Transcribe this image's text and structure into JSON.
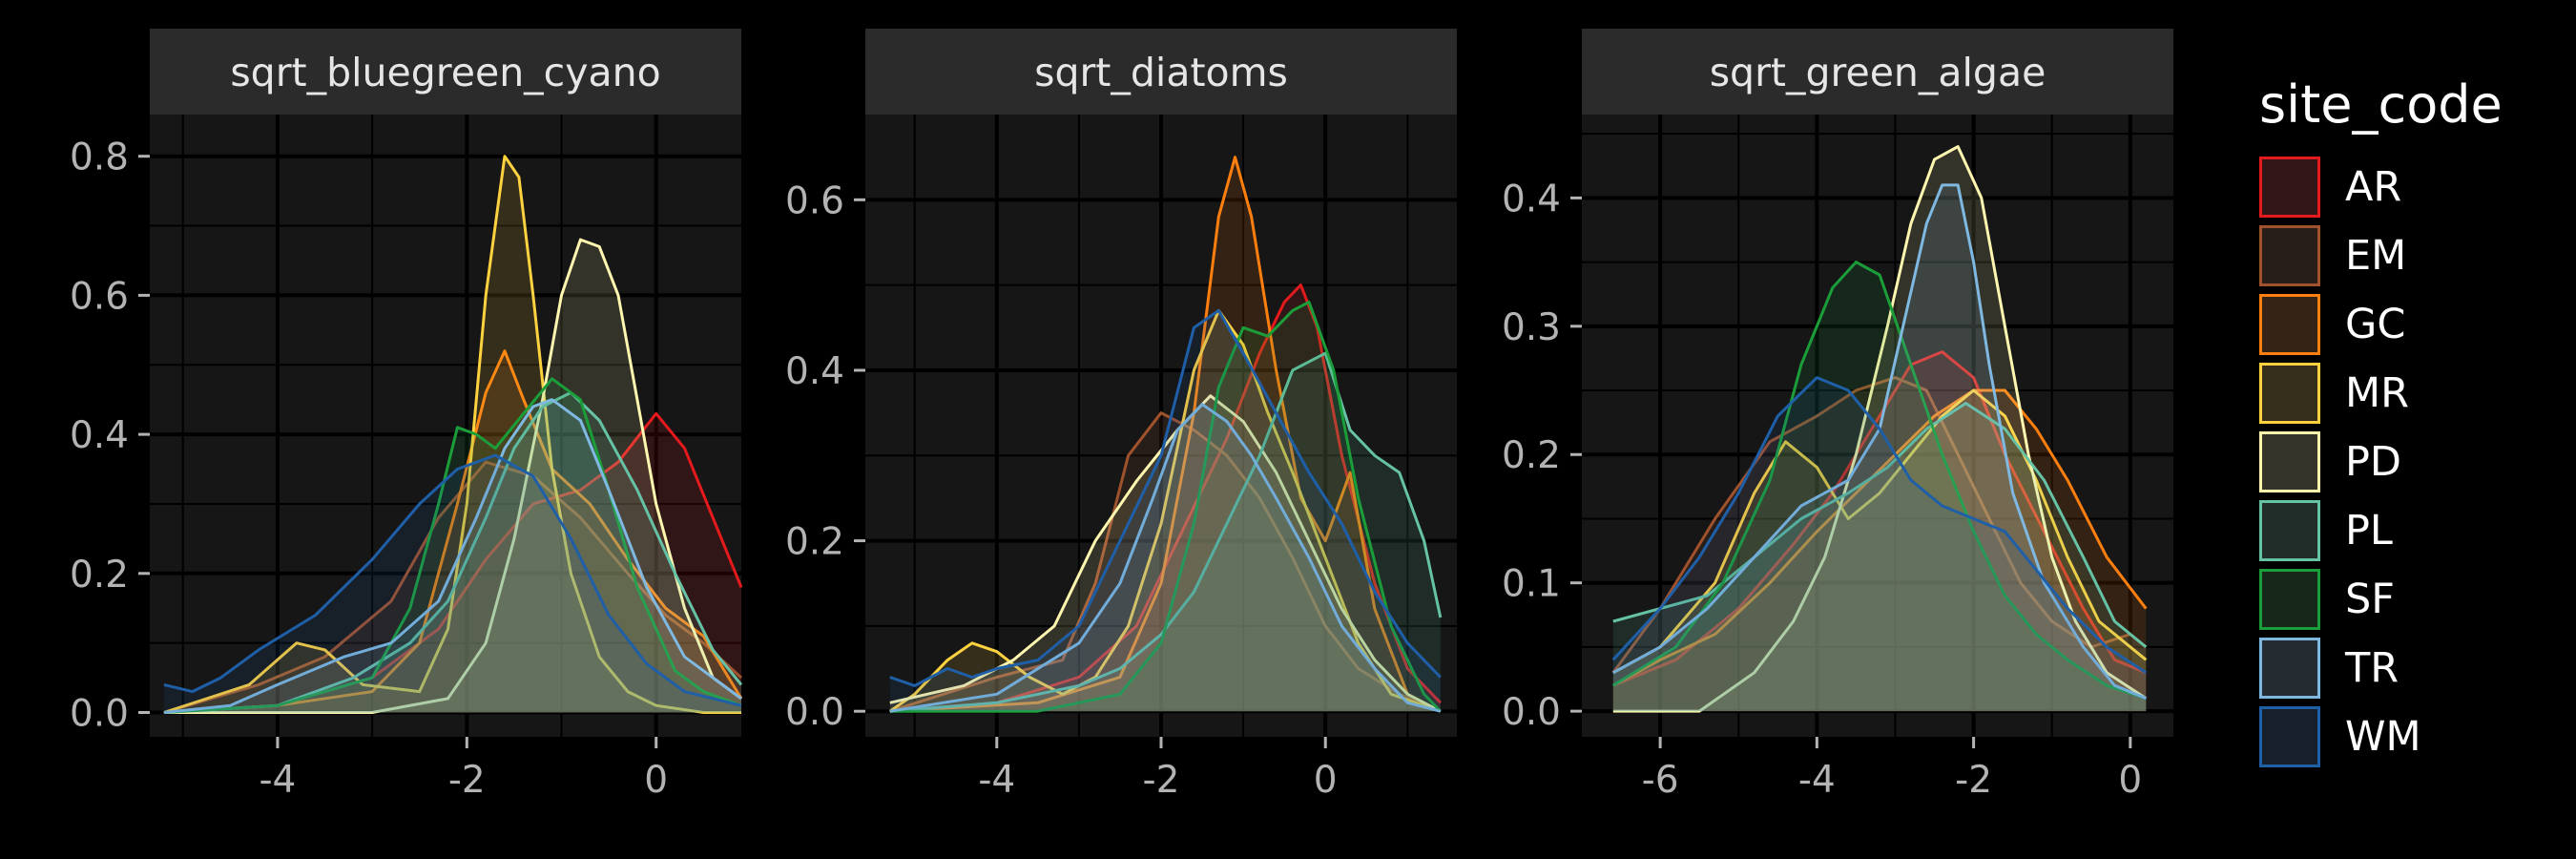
{
  "legend": {
    "title": "site_code",
    "items": [
      {
        "label": "AR",
        "color": "#e41a1c"
      },
      {
        "label": "EM",
        "color": "#a0522d"
      },
      {
        "label": "GC",
        "color": "#ff7f0e"
      },
      {
        "label": "MR",
        "color": "#ffd23f"
      },
      {
        "label": "PD",
        "color": "#fff7b0"
      },
      {
        "label": "PL",
        "color": "#66c2a5"
      },
      {
        "label": "SF",
        "color": "#1b9e3a"
      },
      {
        "label": "TR",
        "color": "#7fb8e0"
      },
      {
        "label": "WM",
        "color": "#1f5fa8"
      }
    ]
  },
  "chart_data": [
    {
      "type": "area",
      "title": "sqrt_bluegreen_cyano",
      "xlabel": "",
      "ylabel": "",
      "xlim": [
        -5.35,
        0.9
      ],
      "ylim": [
        -0.035,
        0.86
      ],
      "xticks": [
        -4,
        -2,
        0
      ],
      "xticklabels": [
        "-4",
        "-2",
        "0"
      ],
      "yticks": [
        0.0,
        0.2,
        0.4,
        0.6,
        0.8
      ],
      "yticklabels": [
        "0.0",
        "0.2",
        "0.4",
        "0.6",
        "0.8"
      ],
      "grid": true,
      "series": [
        {
          "name": "AR",
          "x": [
            -5.2,
            -4,
            -3,
            -2.3,
            -1.8,
            -1.3,
            -0.8,
            -0.4,
            0,
            0.3,
            0.6,
            0.9
          ],
          "y": [
            0,
            0.01,
            0.05,
            0.12,
            0.22,
            0.3,
            0.32,
            0.36,
            0.43,
            0.38,
            0.28,
            0.18
          ]
        },
        {
          "name": "EM",
          "x": [
            -5.2,
            -4.2,
            -3.5,
            -2.8,
            -2.3,
            -1.8,
            -1.3,
            -0.8,
            -0.3,
            0.1,
            0.5,
            0.9
          ],
          "y": [
            0,
            0.04,
            0.08,
            0.16,
            0.28,
            0.36,
            0.34,
            0.28,
            0.2,
            0.14,
            0.1,
            0.05
          ]
        },
        {
          "name": "GC",
          "x": [
            -5.2,
            -4,
            -3,
            -2.5,
            -2.1,
            -1.8,
            -1.6,
            -1.4,
            -1.1,
            -0.7,
            -0.3,
            0.1,
            0.5,
            0.9
          ],
          "y": [
            0,
            0.01,
            0.03,
            0.1,
            0.3,
            0.46,
            0.52,
            0.45,
            0.35,
            0.3,
            0.22,
            0.15,
            0.11,
            0.02
          ]
        },
        {
          "name": "MR",
          "x": [
            -5.2,
            -4.3,
            -3.8,
            -3.5,
            -3.1,
            -2.5,
            -2.2,
            -2,
            -1.8,
            -1.6,
            -1.45,
            -1.3,
            -1.1,
            -0.9,
            -0.6,
            -0.3,
            0,
            0.5,
            0.9
          ],
          "y": [
            0,
            0.04,
            0.1,
            0.09,
            0.04,
            0.03,
            0.12,
            0.3,
            0.6,
            0.8,
            0.77,
            0.6,
            0.35,
            0.2,
            0.08,
            0.03,
            0.01,
            0,
            0
          ]
        },
        {
          "name": "PD",
          "x": [
            -5.2,
            -3,
            -2.2,
            -1.8,
            -1.5,
            -1.2,
            -1,
            -0.8,
            -0.6,
            -0.4,
            -0.2,
            0,
            0.3,
            0.6,
            0.9
          ],
          "y": [
            0,
            0,
            0.02,
            0.1,
            0.25,
            0.45,
            0.6,
            0.68,
            0.67,
            0.6,
            0.45,
            0.3,
            0.15,
            0.05,
            0.02
          ]
        },
        {
          "name": "PL",
          "x": [
            -5.2,
            -4,
            -3.2,
            -2.6,
            -2.2,
            -1.8,
            -1.5,
            -1.2,
            -0.9,
            -0.6,
            -0.2,
            0.2,
            0.6,
            0.9
          ],
          "y": [
            0,
            0.01,
            0.05,
            0.1,
            0.16,
            0.28,
            0.38,
            0.44,
            0.46,
            0.42,
            0.32,
            0.2,
            0.09,
            0.04
          ]
        },
        {
          "name": "SF",
          "x": [
            -5.2,
            -4,
            -3,
            -2.6,
            -2.3,
            -2.1,
            -1.9,
            -1.7,
            -1.4,
            -1.1,
            -0.8,
            -0.5,
            -0.2,
            0.2,
            0.5,
            0.9
          ],
          "y": [
            0,
            0.01,
            0.05,
            0.15,
            0.3,
            0.41,
            0.4,
            0.38,
            0.43,
            0.48,
            0.45,
            0.32,
            0.18,
            0.06,
            0.03,
            0.01
          ]
        },
        {
          "name": "TR",
          "x": [
            -5.2,
            -4.5,
            -4,
            -3.3,
            -2.8,
            -2.3,
            -1.9,
            -1.6,
            -1.3,
            -1.1,
            -0.8,
            -0.5,
            -0.1,
            0.3,
            0.9
          ],
          "y": [
            0,
            0.01,
            0.04,
            0.08,
            0.1,
            0.16,
            0.28,
            0.38,
            0.44,
            0.45,
            0.42,
            0.32,
            0.18,
            0.08,
            0.02
          ]
        },
        {
          "name": "WM",
          "x": [
            -5.2,
            -4.9,
            -4.6,
            -4.2,
            -3.6,
            -3,
            -2.5,
            -2.1,
            -1.7,
            -1.3,
            -0.9,
            -0.5,
            -0.1,
            0.3,
            0.9
          ],
          "y": [
            0.04,
            0.03,
            0.05,
            0.09,
            0.14,
            0.22,
            0.3,
            0.35,
            0.37,
            0.34,
            0.25,
            0.14,
            0.07,
            0.03,
            0.01
          ]
        }
      ]
    },
    {
      "type": "area",
      "title": "sqrt_diatoms",
      "xlabel": "",
      "ylabel": "",
      "xlim": [
        -5.6,
        1.6
      ],
      "ylim": [
        -0.03,
        0.7
      ],
      "xticks": [
        -4,
        -2,
        0
      ],
      "xticklabels": [
        "-4",
        "-2",
        "0"
      ],
      "yticks": [
        0.0,
        0.2,
        0.4,
        0.6
      ],
      "yticklabels": [
        "0.0",
        "0.2",
        "0.4",
        "0.6"
      ],
      "grid": true,
      "series": [
        {
          "name": "AR",
          "x": [
            -5.3,
            -4,
            -3,
            -2.3,
            -1.8,
            -1.2,
            -0.8,
            -0.5,
            -0.3,
            -0.1,
            0.2,
            0.6,
            1,
            1.4
          ],
          "y": [
            0,
            0.01,
            0.04,
            0.1,
            0.2,
            0.32,
            0.42,
            0.48,
            0.5,
            0.45,
            0.3,
            0.15,
            0.05,
            0.01
          ]
        },
        {
          "name": "EM",
          "x": [
            -5.3,
            -4,
            -3.2,
            -2.8,
            -2.4,
            -2,
            -1.6,
            -1.2,
            -0.8,
            -0.4,
            0,
            0.4,
            0.9,
            1.4
          ],
          "y": [
            0,
            0.04,
            0.06,
            0.15,
            0.3,
            0.35,
            0.33,
            0.3,
            0.25,
            0.18,
            0.1,
            0.05,
            0.02,
            0
          ]
        },
        {
          "name": "GC",
          "x": [
            -5.3,
            -3.5,
            -2.5,
            -2,
            -1.6,
            -1.3,
            -1.1,
            -0.9,
            -0.6,
            -0.3,
            0,
            0.3,
            0.6,
            1,
            1.4
          ],
          "y": [
            0,
            0.01,
            0.04,
            0.15,
            0.35,
            0.58,
            0.65,
            0.58,
            0.4,
            0.25,
            0.2,
            0.28,
            0.12,
            0.02,
            0
          ]
        },
        {
          "name": "MR",
          "x": [
            -5.3,
            -5,
            -4.6,
            -4.3,
            -4,
            -3.6,
            -3.2,
            -2.8,
            -2.4,
            -2,
            -1.6,
            -1.3,
            -1,
            -0.7,
            -0.4,
            0,
            0.4,
            0.8,
            1.4
          ],
          "y": [
            0,
            0.02,
            0.06,
            0.08,
            0.07,
            0.04,
            0.02,
            0.04,
            0.1,
            0.22,
            0.4,
            0.47,
            0.43,
            0.35,
            0.28,
            0.18,
            0.08,
            0.02,
            0
          ]
        },
        {
          "name": "PD",
          "x": [
            -5.3,
            -4.4,
            -3.8,
            -3.3,
            -2.8,
            -2.3,
            -1.8,
            -1.4,
            -1,
            -0.6,
            -0.2,
            0.2,
            0.6,
            1,
            1.4
          ],
          "y": [
            0.01,
            0.03,
            0.06,
            0.1,
            0.2,
            0.27,
            0.33,
            0.37,
            0.34,
            0.28,
            0.2,
            0.12,
            0.06,
            0.02,
            0
          ]
        },
        {
          "name": "PL",
          "x": [
            -5.3,
            -4,
            -3,
            -2.5,
            -2,
            -1.6,
            -1.2,
            -0.8,
            -0.4,
            0,
            0.3,
            0.6,
            0.9,
            1.2,
            1.4
          ],
          "y": [
            0,
            0.01,
            0.03,
            0.05,
            0.09,
            0.14,
            0.22,
            0.3,
            0.4,
            0.42,
            0.33,
            0.3,
            0.28,
            0.2,
            0.11
          ]
        },
        {
          "name": "SF",
          "x": [
            -5.3,
            -3.5,
            -2.5,
            -2,
            -1.6,
            -1.3,
            -1,
            -0.7,
            -0.4,
            -0.2,
            0.1,
            0.4,
            0.8,
            1.2,
            1.4
          ],
          "y": [
            0,
            0,
            0.02,
            0.08,
            0.22,
            0.38,
            0.45,
            0.44,
            0.47,
            0.48,
            0.4,
            0.25,
            0.1,
            0.02,
            0
          ]
        },
        {
          "name": "TR",
          "x": [
            -5.3,
            -4,
            -3,
            -2.5,
            -2.1,
            -1.8,
            -1.5,
            -1.2,
            -0.9,
            -0.6,
            -0.2,
            0.2,
            0.6,
            1,
            1.4
          ],
          "y": [
            0,
            0.02,
            0.08,
            0.15,
            0.25,
            0.33,
            0.36,
            0.34,
            0.3,
            0.25,
            0.18,
            0.1,
            0.05,
            0.01,
            0
          ]
        },
        {
          "name": "WM",
          "x": [
            -5.3,
            -5,
            -4.6,
            -4.3,
            -4,
            -3.5,
            -3,
            -2.5,
            -2,
            -1.6,
            -1.3,
            -1,
            -0.6,
            -0.2,
            0.2,
            0.6,
            1,
            1.4
          ],
          "y": [
            0.04,
            0.03,
            0.05,
            0.04,
            0.05,
            0.06,
            0.1,
            0.2,
            0.3,
            0.45,
            0.47,
            0.42,
            0.35,
            0.28,
            0.22,
            0.14,
            0.08,
            0.04
          ]
        }
      ]
    },
    {
      "type": "area",
      "title": "sqrt_green_algae",
      "xlabel": "",
      "ylabel": "",
      "xlim": [
        -7.0,
        0.55
      ],
      "ylim": [
        -0.02,
        0.465
      ],
      "xticks": [
        -6,
        -4,
        -2,
        0
      ],
      "xticklabels": [
        "-6",
        "-4",
        "-2",
        "0"
      ],
      "yticks": [
        0.0,
        0.1,
        0.2,
        0.3,
        0.4
      ],
      "yticklabels": [
        "0.0",
        "0.1",
        "0.2",
        "0.3",
        "0.4"
      ],
      "grid": true,
      "series": [
        {
          "name": "AR",
          "x": [
            -6.6,
            -5.8,
            -5,
            -4.3,
            -3.8,
            -3.3,
            -2.8,
            -2.4,
            -2,
            -1.6,
            -1.1,
            -0.6,
            -0.2,
            0.2
          ],
          "y": [
            0.02,
            0.04,
            0.08,
            0.13,
            0.17,
            0.22,
            0.27,
            0.28,
            0.26,
            0.2,
            0.14,
            0.08,
            0.04,
            0.03
          ]
        },
        {
          "name": "EM",
          "x": [
            -6.6,
            -6,
            -5.3,
            -4.6,
            -4,
            -3.5,
            -3,
            -2.6,
            -2.2,
            -1.8,
            -1.4,
            -1,
            -0.5,
            0,
            0.2
          ],
          "y": [
            0.03,
            0.08,
            0.15,
            0.21,
            0.23,
            0.25,
            0.26,
            0.25,
            0.2,
            0.15,
            0.1,
            0.07,
            0.05,
            0.06,
            0.05
          ]
        },
        {
          "name": "GC",
          "x": [
            -6.6,
            -6,
            -5.3,
            -4.6,
            -4,
            -3.5,
            -3,
            -2.5,
            -2,
            -1.6,
            -1.2,
            -0.8,
            -0.3,
            0.2
          ],
          "y": [
            0.02,
            0.04,
            0.06,
            0.1,
            0.14,
            0.17,
            0.2,
            0.23,
            0.25,
            0.25,
            0.22,
            0.18,
            0.12,
            0.08
          ]
        },
        {
          "name": "MR",
          "x": [
            -6.6,
            -6,
            -5.3,
            -4.8,
            -4.4,
            -4,
            -3.6,
            -3.2,
            -2.8,
            -2.4,
            -2,
            -1.6,
            -1.2,
            -0.8,
            -0.4,
            0.2
          ],
          "y": [
            0.03,
            0.05,
            0.1,
            0.17,
            0.21,
            0.19,
            0.15,
            0.17,
            0.2,
            0.23,
            0.25,
            0.23,
            0.18,
            0.12,
            0.07,
            0.04
          ]
        },
        {
          "name": "PD",
          "x": [
            -6.6,
            -5.5,
            -4.8,
            -4.3,
            -3.9,
            -3.5,
            -3.1,
            -2.8,
            -2.5,
            -2.2,
            -1.9,
            -1.6,
            -1.3,
            -1,
            -0.7,
            -0.3,
            0.2
          ],
          "y": [
            0,
            0,
            0.03,
            0.07,
            0.12,
            0.2,
            0.3,
            0.38,
            0.43,
            0.44,
            0.4,
            0.3,
            0.2,
            0.12,
            0.07,
            0.03,
            0.01
          ]
        },
        {
          "name": "PL",
          "x": [
            -6.6,
            -6,
            -5.4,
            -4.8,
            -4.2,
            -3.6,
            -3.1,
            -2.6,
            -2.1,
            -1.6,
            -1.1,
            -0.6,
            -0.2,
            0.2
          ],
          "y": [
            0.07,
            0.08,
            0.09,
            0.12,
            0.15,
            0.17,
            0.19,
            0.22,
            0.24,
            0.22,
            0.18,
            0.12,
            0.07,
            0.05
          ]
        },
        {
          "name": "SF",
          "x": [
            -6.6,
            -5.8,
            -5.2,
            -4.6,
            -4.2,
            -3.8,
            -3.5,
            -3.2,
            -2.8,
            -2.4,
            -2,
            -1.6,
            -1.2,
            -0.8,
            -0.3,
            0.2
          ],
          "y": [
            0.02,
            0.05,
            0.1,
            0.18,
            0.27,
            0.33,
            0.35,
            0.34,
            0.27,
            0.2,
            0.14,
            0.09,
            0.06,
            0.04,
            0.02,
            0.01
          ]
        },
        {
          "name": "TR",
          "x": [
            -6.6,
            -6,
            -5.4,
            -4.8,
            -4.2,
            -3.6,
            -3.2,
            -2.9,
            -2.6,
            -2.4,
            -2.2,
            -2,
            -1.8,
            -1.5,
            -1.1,
            -0.6,
            -0.2,
            0.2
          ],
          "y": [
            0.03,
            0.05,
            0.08,
            0.12,
            0.16,
            0.18,
            0.22,
            0.3,
            0.38,
            0.41,
            0.41,
            0.35,
            0.27,
            0.17,
            0.1,
            0.05,
            0.02,
            0.01
          ]
        },
        {
          "name": "WM",
          "x": [
            -6.6,
            -6,
            -5.5,
            -5,
            -4.5,
            -4,
            -3.6,
            -3.2,
            -2.8,
            -2.4,
            -2,
            -1.6,
            -1.2,
            -0.8,
            -0.3,
            0.2
          ],
          "y": [
            0.04,
            0.08,
            0.12,
            0.17,
            0.23,
            0.26,
            0.25,
            0.22,
            0.18,
            0.16,
            0.15,
            0.14,
            0.11,
            0.08,
            0.05,
            0.03
          ]
        }
      ]
    }
  ]
}
